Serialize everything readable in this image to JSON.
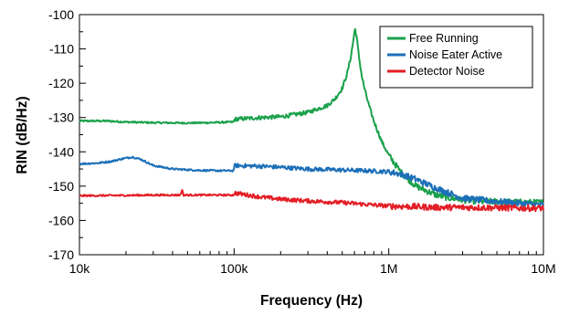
{
  "chart_data": {
    "type": "line",
    "title": "",
    "xlabel": "Frequency (Hz)",
    "ylabel": "RIN (dB/Hz)",
    "xscale": "log",
    "xlim": [
      10000,
      10000000
    ],
    "ylim": [
      -170,
      -100
    ],
    "grid": false,
    "legend_position": "top-right",
    "x_ticks": [
      {
        "value": 10000,
        "label": "10k"
      },
      {
        "value": 100000,
        "label": "100k"
      },
      {
        "value": 1000000,
        "label": "1M"
      },
      {
        "value": 10000000,
        "label": "10M"
      }
    ],
    "y_ticks": [
      {
        "value": -100,
        "label": "-100"
      },
      {
        "value": -110,
        "label": "-110"
      },
      {
        "value": -120,
        "label": "-120"
      },
      {
        "value": -130,
        "label": "-130"
      },
      {
        "value": -140,
        "label": "-140"
      },
      {
        "value": -150,
        "label": "-150"
      },
      {
        "value": -160,
        "label": "-160"
      },
      {
        "value": -170,
        "label": "-170"
      }
    ],
    "series": [
      {
        "name": "Free Running",
        "color": "#1aa14b",
        "x": [
          10000,
          15000,
          20000,
          30000,
          50000,
          70000,
          99000,
          101000,
          150000,
          200000,
          300000,
          400000,
          450000,
          500000,
          540000,
          570000,
          590000,
          605000,
          620000,
          640000,
          670000,
          700000,
          750000,
          800000,
          900000,
          1000000,
          1200000,
          1500000,
          2000000,
          2500000,
          3000000,
          4000000,
          5000000,
          7000000,
          10000000
        ],
        "y": [
          -131,
          -131,
          -131.3,
          -131.5,
          -131.6,
          -131.5,
          -131.3,
          -130.5,
          -130,
          -129.8,
          -128.5,
          -126.5,
          -124.5,
          -121.5,
          -117,
          -112,
          -107.5,
          -104,
          -106.5,
          -112,
          -118,
          -122,
          -127,
          -131,
          -137,
          -141,
          -146,
          -150,
          -152.5,
          -153.5,
          -154,
          -154.5,
          -154.5,
          -154.7,
          -154.8
        ]
      },
      {
        "name": "Noise Eater Active",
        "color": "#1c6fb8",
        "x": [
          10000,
          13000,
          16000,
          19000,
          22000,
          25000,
          30000,
          40000,
          60000,
          80000,
          99000,
          101000,
          150000,
          200000,
          300000,
          500000,
          700000,
          1000000,
          1200000,
          1500000,
          2000000,
          3000000,
          5000000,
          7000000,
          10000000
        ],
        "y": [
          -143.5,
          -143.3,
          -142.8,
          -142,
          -141.5,
          -142.2,
          -144,
          -145,
          -145.4,
          -145.5,
          -145.5,
          -144,
          -144.2,
          -144.5,
          -145,
          -145.3,
          -145.5,
          -145.8,
          -146.5,
          -148,
          -150.5,
          -153.5,
          -154.5,
          -155,
          -155.5
        ]
      },
      {
        "name": "Detector Noise",
        "color": "#e31e26",
        "x": [
          10000,
          20000,
          30000,
          45000,
          46000,
          47000,
          60000,
          80000,
          99000,
          101000,
          150000,
          200000,
          300000,
          500000,
          700000,
          1000000,
          1500000,
          2000000,
          3000000,
          5000000,
          7000000,
          10000000
        ],
        "y": [
          -152.8,
          -152.7,
          -152.6,
          -152.6,
          -151,
          -152.6,
          -152.6,
          -152.6,
          -152.6,
          -152,
          -153.2,
          -153.8,
          -154.3,
          -154.8,
          -155.3,
          -155.8,
          -156,
          -156.2,
          -156.2,
          -156.3,
          -156.4,
          -156.4
        ]
      }
    ]
  }
}
